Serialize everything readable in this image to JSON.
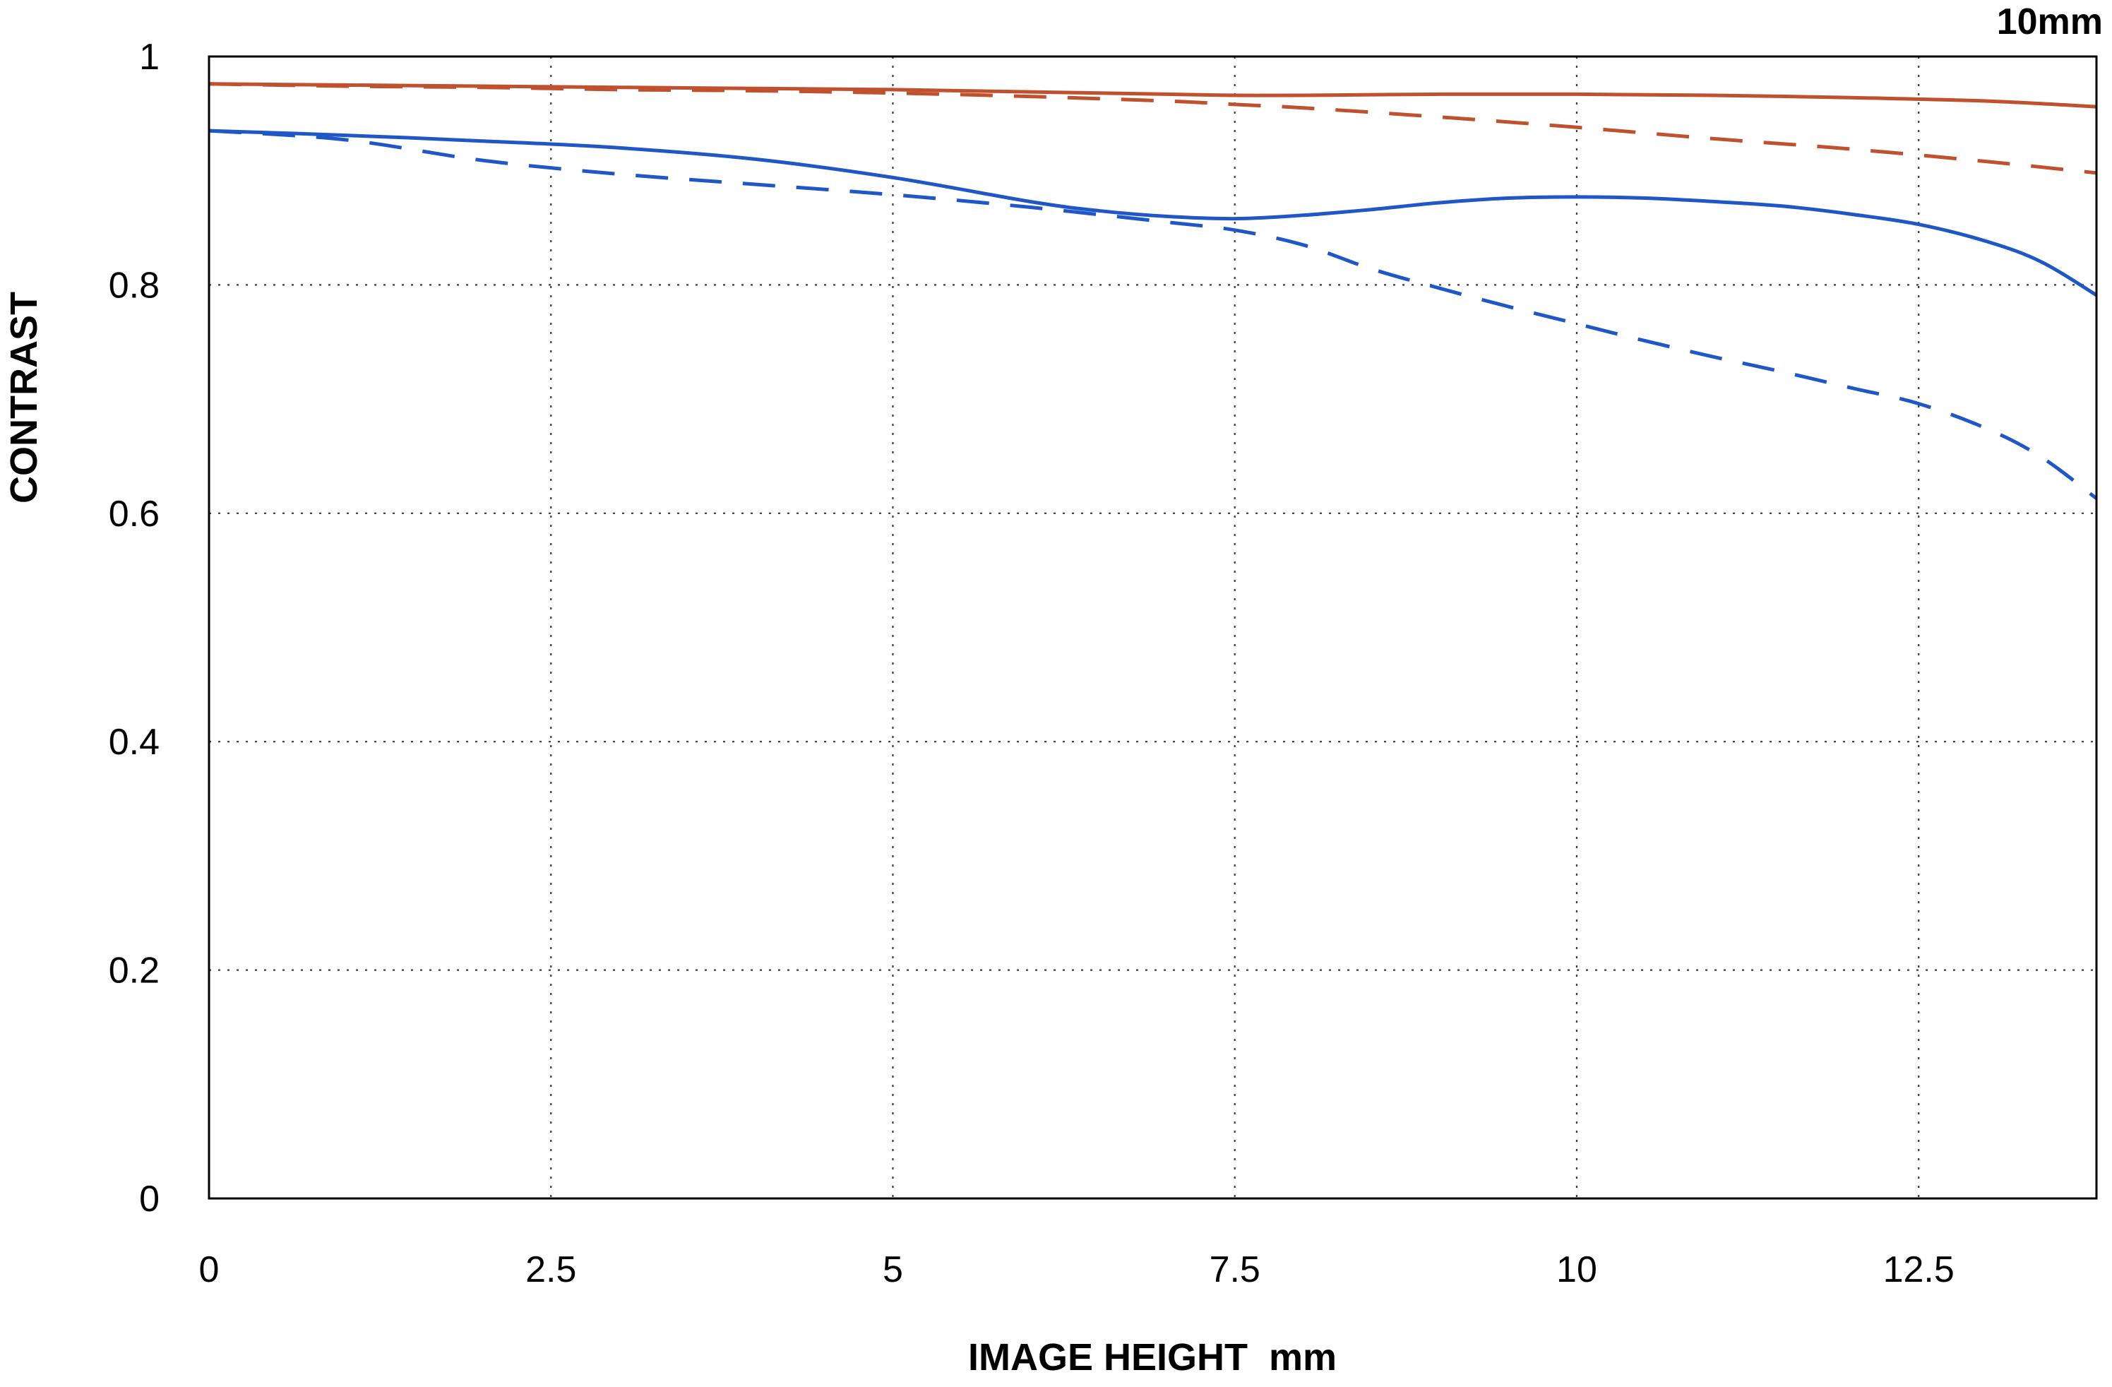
{
  "chart_data": {
    "type": "line",
    "title": "10mm",
    "xlabel": "IMAGE HEIGHT  mm",
    "ylabel": "CONTRAST",
    "xlim": [
      0,
      13.8
    ],
    "ylim": [
      0,
      1
    ],
    "xticks": {
      "values": [
        0,
        2.5,
        5,
        7.5,
        10,
        12.5
      ],
      "labels": [
        "0",
        "2.5",
        "5",
        "7.5",
        "10",
        "12.5"
      ]
    },
    "yticks": {
      "values": [
        0,
        0.2,
        0.4,
        0.6,
        0.8,
        1
      ],
      "labels": [
        "0",
        "0.2",
        "0.4",
        "0.6",
        "0.8",
        "1"
      ]
    },
    "grid": true,
    "legend_position": "none",
    "colors": {
      "red": "#c0512f",
      "blue": "#2057c6",
      "grid": "#3a3a3a",
      "axis": "#000000"
    },
    "series": [
      {
        "id": "red-solid",
        "name": "red solid curve",
        "color": "#c0512f",
        "style": "solid",
        "x": [
          0,
          1,
          2,
          3,
          4,
          5,
          6,
          7,
          7.5,
          8,
          9,
          10,
          11,
          12,
          13,
          13.8
        ],
        "y": [
          0.976,
          0.975,
          0.974,
          0.973,
          0.972,
          0.971,
          0.969,
          0.967,
          0.966,
          0.966,
          0.967,
          0.967,
          0.966,
          0.964,
          0.961,
          0.956
        ]
      },
      {
        "id": "red-dashed",
        "name": "red dashed curve",
        "color": "#c0512f",
        "style": "dashed",
        "x": [
          0,
          1,
          2,
          3,
          4,
          5,
          6,
          7,
          7.5,
          8,
          9,
          10,
          11,
          12,
          13,
          13.8
        ],
        "y": [
          0.976,
          0.974,
          0.973,
          0.971,
          0.97,
          0.968,
          0.965,
          0.961,
          0.958,
          0.955,
          0.947,
          0.938,
          0.928,
          0.919,
          0.908,
          0.898
        ]
      },
      {
        "id": "blue-solid",
        "name": "blue solid curve",
        "color": "#2057c6",
        "style": "solid",
        "x": [
          0,
          1,
          2,
          3,
          4,
          5,
          6,
          6.5,
          7,
          7.5,
          8,
          8.5,
          9,
          9.5,
          10,
          10.5,
          11,
          11.5,
          12,
          12.5,
          13,
          13.4,
          13.8
        ],
        "y": [
          0.935,
          0.931,
          0.926,
          0.92,
          0.91,
          0.894,
          0.873,
          0.865,
          0.86,
          0.858,
          0.861,
          0.866,
          0.872,
          0.876,
          0.877,
          0.876,
          0.873,
          0.869,
          0.862,
          0.853,
          0.838,
          0.82,
          0.791
        ]
      },
      {
        "id": "blue-dashed",
        "name": "blue dashed curve",
        "color": "#2057c6",
        "style": "dashed",
        "x": [
          0,
          1,
          2,
          3,
          4,
          5,
          6,
          7,
          7.5,
          8,
          8.5,
          9,
          9.5,
          10,
          10.5,
          11,
          11.5,
          12,
          12.5,
          13,
          13.4,
          13.8
        ],
        "y": [
          0.935,
          0.927,
          0.909,
          0.897,
          0.888,
          0.879,
          0.868,
          0.855,
          0.848,
          0.835,
          0.814,
          0.797,
          0.781,
          0.766,
          0.751,
          0.737,
          0.724,
          0.71,
          0.696,
          0.674,
          0.649,
          0.613
        ]
      }
    ]
  }
}
